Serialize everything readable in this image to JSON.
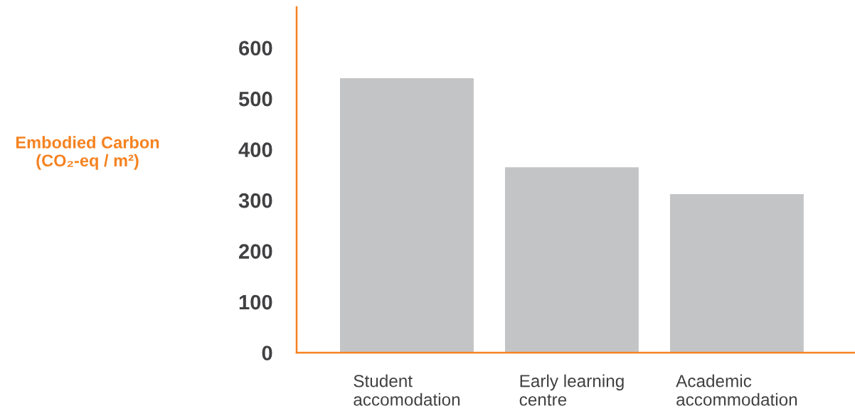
{
  "chart_data": {
    "type": "bar",
    "ylabel": "Embodied Carbon\n(CO₂-eq / m²)",
    "categories": [
      "Student\naccomodation",
      "Early learning\ncentre",
      "Academic\naccommodation"
    ],
    "values": [
      540,
      365,
      312
    ],
    "color": "#c3c4c6",
    "ylim": [
      0,
      680
    ],
    "yticks": [
      0,
      100,
      200,
      300,
      400,
      500,
      600
    ],
    "grid": false
  }
}
